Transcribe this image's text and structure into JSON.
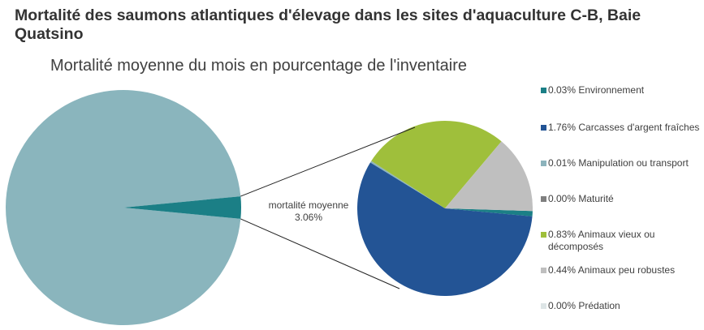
{
  "chart_data": {
    "type": "pie",
    "subtype": "pie-of-pie",
    "title": "Mortalité des saumons atlantiques d'élevage dans les sites d'aquaculture C-B, Baie Quatsino",
    "subtitle": "Mortalité moyenne du mois en pourcentage de l'inventaire",
    "main_pie": {
      "slices": [
        {
          "value": 96.94,
          "color": "#8ab5bd"
        },
        {
          "label": "mortalité moyenne",
          "value": 3.06,
          "value_label": "3.06%",
          "color": "#1b7f86"
        }
      ]
    },
    "secondary_pie": {
      "slices": [
        {
          "name": "Environnement",
          "value": 0.03,
          "label": "0.03% Environnement",
          "color": "#1b7f86"
        },
        {
          "name": "Carcasses d'argent fraîches",
          "value": 1.76,
          "label": "1.76% Carcasses d'argent fraîches",
          "color": "#235495"
        },
        {
          "name": "Manipulation ou transport",
          "value": 0.01,
          "label": "0.01% Manipulation ou transport",
          "color": "#8cb3bc"
        },
        {
          "name": "Maturité",
          "value": 0.0,
          "label": "0.00% Maturité",
          "color": "#7f7f7f"
        },
        {
          "name": "Animaux vieux ou décomposés",
          "value": 0.83,
          "label": "0.83% Animaux vieux ou décomposés",
          "color": "#9fbf3b"
        },
        {
          "name": "Animaux peu robustes",
          "value": 0.44,
          "label": "0.44% Animaux peu robustes",
          "color": "#bfbfbf"
        },
        {
          "name": "Prédation",
          "value": 0.0,
          "label": "0.00% Prédation",
          "color": "#dde5e6"
        }
      ]
    },
    "legend_position": "right"
  }
}
